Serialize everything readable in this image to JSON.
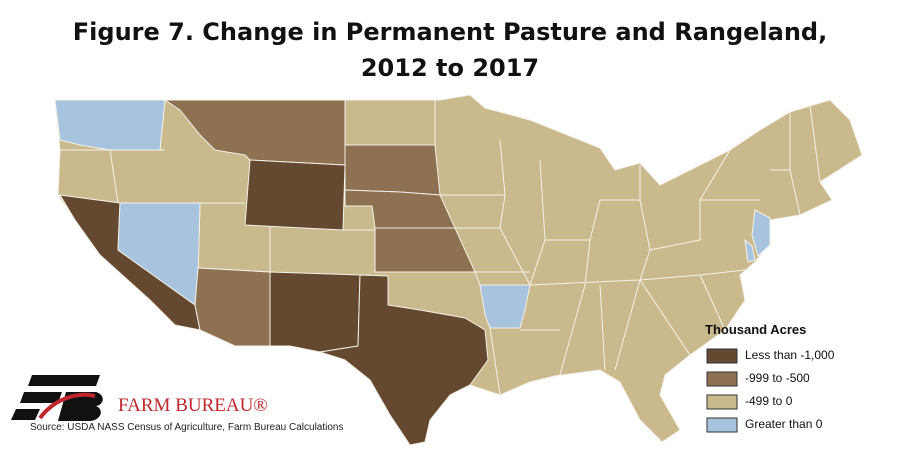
{
  "title": [
    "Figure 7. Change in Permanent Pasture and Rangeland,",
    "2012 to 2017"
  ],
  "legend": {
    "title": "Thousand Acres",
    "items": [
      {
        "label": "Less than -1,000",
        "color": "#654830"
      },
      {
        "label": "-999 to -500",
        "color": "#8d7151"
      },
      {
        "label": "-499 to 0",
        "color": "#c9b98c"
      },
      {
        "label": "Greater than 0",
        "color": "#a7c3de"
      }
    ]
  },
  "logo": {
    "text": "FARM BUREAU®"
  },
  "source": "Source: USDA NASS Census of Agriculture, Farm Bureau Calculations"
}
